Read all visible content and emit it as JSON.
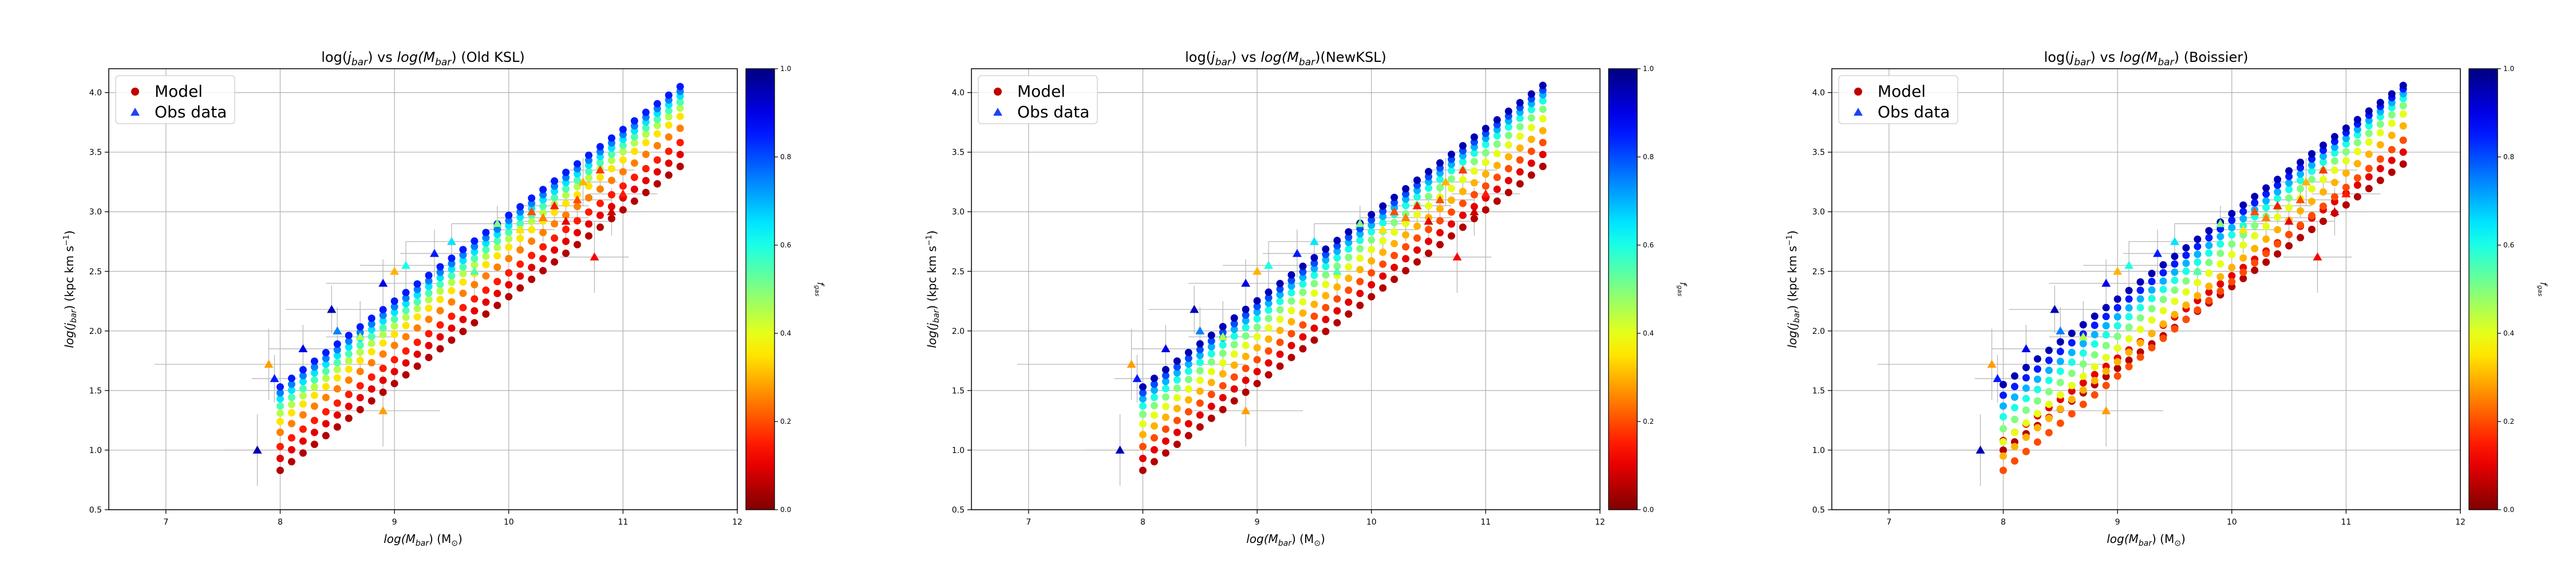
{
  "figure": {
    "shared": {
      "legend": [
        {
          "label": "Model",
          "marker": "circle",
          "color": "#c00000"
        },
        {
          "label": "Obs data",
          "marker": "triangle",
          "color": "#2244ee"
        }
      ],
      "colorbar": {
        "label": "f_gas",
        "range": [
          0.0,
          1.0
        ],
        "ticks": [
          "0.0",
          "0.2",
          "0.4",
          "0.6",
          "0.8",
          "1.0"
        ],
        "colormap": "jet_r"
      }
    },
    "grid_color": "#b0b0b0"
  },
  "chart_data": [
    {
      "type": "scatter",
      "title": "log(j_bar) vs log(M_bar) (Old KSL)",
      "title_parts": {
        "pre": "log(",
        "j": "j",
        "j_sub": "bar",
        "mid": ") vs ",
        "m_log": "log(",
        "m": "M",
        "m_sub": "bar",
        "post": ") (Old KSL)"
      },
      "xlabel": "log(M_bar) (M_sun)",
      "ylabel": "log(j_bar) (kpc km s^-1)",
      "xlim": [
        6.5,
        12.0
      ],
      "ylim": [
        0.5,
        4.2
      ],
      "xticks": [
        7,
        8,
        9,
        10,
        11,
        12
      ],
      "yticks": [
        0.5,
        1.0,
        1.5,
        2.0,
        2.5,
        3.0,
        3.5,
        4.0
      ],
      "grid": true,
      "legend_position": "top-left",
      "model_bands": [
        {
          "fgas": 0.05,
          "x_start": 8.0,
          "x_end": 11.5,
          "y_start": 0.83,
          "y_end": 3.38
        },
        {
          "fgas": 0.1,
          "x_start": 8.0,
          "x_end": 11.5,
          "y_start": 0.93,
          "y_end": 3.48
        },
        {
          "fgas": 0.15,
          "x_start": 8.0,
          "x_end": 11.5,
          "y_start": 1.03,
          "y_end": 3.58
        },
        {
          "fgas": 0.25,
          "x_start": 8.0,
          "x_end": 11.5,
          "y_start": 1.15,
          "y_end": 3.7
        },
        {
          "fgas": 0.35,
          "x_start": 8.0,
          "x_end": 11.5,
          "y_start": 1.24,
          "y_end": 3.8
        },
        {
          "fgas": 0.45,
          "x_start": 8.0,
          "x_end": 11.5,
          "y_start": 1.31,
          "y_end": 3.87
        },
        {
          "fgas": 0.55,
          "x_start": 8.0,
          "x_end": 11.5,
          "y_start": 1.37,
          "y_end": 3.92
        },
        {
          "fgas": 0.65,
          "x_start": 8.0,
          "x_end": 11.5,
          "y_start": 1.43,
          "y_end": 3.97
        },
        {
          "fgas": 0.75,
          "x_start": 8.0,
          "x_end": 11.5,
          "y_start": 1.48,
          "y_end": 4.01
        },
        {
          "fgas": 0.85,
          "x_start": 8.0,
          "x_end": 11.5,
          "y_start": 1.53,
          "y_end": 4.05
        }
      ],
      "obs": [
        {
          "x": 7.8,
          "y": 1.0,
          "fgas": 0.95,
          "xerr": 0.3,
          "yerr": 0.3
        },
        {
          "x": 7.9,
          "y": 1.72,
          "fgas": 0.28,
          "xerr": 1.0,
          "yerr": 0.3
        },
        {
          "x": 7.95,
          "y": 1.6,
          "fgas": 0.85,
          "xerr": 0.2,
          "yerr": 0.2
        },
        {
          "x": 8.2,
          "y": 1.85,
          "fgas": 0.9,
          "xerr": 0.3,
          "yerr": 0.2
        },
        {
          "x": 8.45,
          "y": 2.18,
          "fgas": 0.95,
          "xerr": 0.4,
          "yerr": 0.2
        },
        {
          "x": 8.5,
          "y": 2.0,
          "fgas": 0.75,
          "xerr": 0.4,
          "yerr": 0.2
        },
        {
          "x": 8.7,
          "y": 1.95,
          "fgas": 0.45,
          "xerr": 0.3,
          "yerr": 0.3
        },
        {
          "x": 8.9,
          "y": 1.33,
          "fgas": 0.28,
          "xerr": 0.5,
          "yerr": 0.3
        },
        {
          "x": 8.9,
          "y": 2.4,
          "fgas": 0.9,
          "xerr": 0.5,
          "yerr": 0.2
        },
        {
          "x": 9.0,
          "y": 2.5,
          "fgas": 0.3,
          "xerr": 0.5,
          "yerr": 0.2
        },
        {
          "x": 9.1,
          "y": 2.55,
          "fgas": 0.6,
          "xerr": 0.4,
          "yerr": 0.2
        },
        {
          "x": 9.35,
          "y": 2.65,
          "fgas": 0.85,
          "xerr": 0.3,
          "yerr": 0.2
        },
        {
          "x": 9.5,
          "y": 2.75,
          "fgas": 0.65,
          "xerr": 0.4,
          "yerr": 0.15
        },
        {
          "x": 9.7,
          "y": 2.5,
          "fgas": 0.55,
          "xerr": 0.4,
          "yerr": 0.2
        },
        {
          "x": 9.9,
          "y": 2.9,
          "fgas": 0.5,
          "xerr": 0.4,
          "yerr": 0.15
        },
        {
          "x": 10.1,
          "y": 2.85,
          "fgas": 0.35,
          "xerr": 0.3,
          "yerr": 0.2
        },
        {
          "x": 10.2,
          "y": 3.0,
          "fgas": 0.2,
          "xerr": 0.3,
          "yerr": 0.15
        },
        {
          "x": 10.3,
          "y": 2.95,
          "fgas": 0.25,
          "xerr": 0.4,
          "yerr": 0.2
        },
        {
          "x": 10.4,
          "y": 3.05,
          "fgas": 0.15,
          "xerr": 0.3,
          "yerr": 0.15
        },
        {
          "x": 10.5,
          "y": 2.92,
          "fgas": 0.1,
          "xerr": 0.4,
          "yerr": 0.2
        },
        {
          "x": 10.6,
          "y": 3.1,
          "fgas": 0.2,
          "xerr": 0.3,
          "yerr": 0.15
        },
        {
          "x": 10.65,
          "y": 3.25,
          "fgas": 0.3,
          "xerr": 0.3,
          "yerr": 0.2
        },
        {
          "x": 10.75,
          "y": 2.62,
          "fgas": 0.12,
          "xerr": 0.3,
          "yerr": 0.3
        },
        {
          "x": 10.8,
          "y": 3.35,
          "fgas": 0.18,
          "xerr": 0.3,
          "yerr": 0.15
        },
        {
          "x": 10.9,
          "y": 3.0,
          "fgas": 0.08,
          "xerr": 0.3,
          "yerr": 0.2
        },
        {
          "x": 11.0,
          "y": 3.15,
          "fgas": 0.15,
          "xerr": 0.3,
          "yerr": 0.15
        }
      ]
    },
    {
      "type": "scatter",
      "title": "log(j_bar) vs log(M_bar)(NewKSL)",
      "title_parts": {
        "pre": "log(",
        "j": "j",
        "j_sub": "bar",
        "mid": ") vs ",
        "m_log": "log(",
        "m": "M",
        "m_sub": "bar",
        "post": ")(NewKSL)"
      },
      "xlabel": "log(M_bar) (M_sun)",
      "ylabel": "log(j_bar) (kpc km s^-1)",
      "xlim": [
        6.5,
        12.0
      ],
      "ylim": [
        0.5,
        4.2
      ],
      "xticks": [
        7,
        8,
        9,
        10,
        11,
        12
      ],
      "yticks": [
        0.5,
        1.0,
        1.5,
        2.0,
        2.5,
        3.0,
        3.5,
        4.0
      ],
      "grid": true,
      "legend_position": "top-left",
      "model_bands": [
        {
          "fgas": 0.05,
          "x_start": 8.0,
          "x_end": 11.5,
          "y_start": 0.83,
          "y_end": 3.38
        },
        {
          "fgas": 0.1,
          "x_start": 8.0,
          "x_end": 11.5,
          "y_start": 0.93,
          "y_end": 3.48
        },
        {
          "fgas": 0.2,
          "x_start": 8.0,
          "x_end": 11.5,
          "y_start": 1.03,
          "y_end": 3.58
        },
        {
          "fgas": 0.3,
          "x_start": 8.0,
          "x_end": 11.5,
          "y_start": 1.13,
          "y_end": 3.68
        },
        {
          "fgas": 0.4,
          "x_start": 8.0,
          "x_end": 11.5,
          "y_start": 1.22,
          "y_end": 3.78
        },
        {
          "fgas": 0.5,
          "x_start": 8.0,
          "x_end": 11.5,
          "y_start": 1.3,
          "y_end": 3.86
        },
        {
          "fgas": 0.6,
          "x_start": 8.0,
          "x_end": 11.5,
          "y_start": 1.37,
          "y_end": 3.93
        },
        {
          "fgas": 0.7,
          "x_start": 8.0,
          "x_end": 11.5,
          "y_start": 1.43,
          "y_end": 3.98
        },
        {
          "fgas": 0.8,
          "x_start": 8.0,
          "x_end": 11.5,
          "y_start": 1.48,
          "y_end": 4.02
        },
        {
          "fgas": 0.95,
          "x_start": 8.0,
          "x_end": 11.5,
          "y_start": 1.53,
          "y_end": 4.06
        }
      ],
      "obs": [
        {
          "x": 7.8,
          "y": 1.0,
          "fgas": 0.95,
          "xerr": 0.3,
          "yerr": 0.3
        },
        {
          "x": 7.9,
          "y": 1.72,
          "fgas": 0.28,
          "xerr": 1.0,
          "yerr": 0.3
        },
        {
          "x": 7.95,
          "y": 1.6,
          "fgas": 0.85,
          "xerr": 0.2,
          "yerr": 0.2
        },
        {
          "x": 8.2,
          "y": 1.85,
          "fgas": 0.9,
          "xerr": 0.3,
          "yerr": 0.2
        },
        {
          "x": 8.45,
          "y": 2.18,
          "fgas": 0.95,
          "xerr": 0.4,
          "yerr": 0.2
        },
        {
          "x": 8.5,
          "y": 2.0,
          "fgas": 0.75,
          "xerr": 0.4,
          "yerr": 0.2
        },
        {
          "x": 8.7,
          "y": 1.95,
          "fgas": 0.45,
          "xerr": 0.3,
          "yerr": 0.3
        },
        {
          "x": 8.9,
          "y": 1.33,
          "fgas": 0.28,
          "xerr": 0.5,
          "yerr": 0.3
        },
        {
          "x": 8.9,
          "y": 2.4,
          "fgas": 0.9,
          "xerr": 0.5,
          "yerr": 0.2
        },
        {
          "x": 9.0,
          "y": 2.5,
          "fgas": 0.3,
          "xerr": 0.5,
          "yerr": 0.2
        },
        {
          "x": 9.1,
          "y": 2.55,
          "fgas": 0.6,
          "xerr": 0.4,
          "yerr": 0.2
        },
        {
          "x": 9.35,
          "y": 2.65,
          "fgas": 0.85,
          "xerr": 0.3,
          "yerr": 0.2
        },
        {
          "x": 9.5,
          "y": 2.75,
          "fgas": 0.65,
          "xerr": 0.4,
          "yerr": 0.15
        },
        {
          "x": 9.7,
          "y": 2.5,
          "fgas": 0.55,
          "xerr": 0.4,
          "yerr": 0.2
        },
        {
          "x": 9.9,
          "y": 2.9,
          "fgas": 0.5,
          "xerr": 0.4,
          "yerr": 0.15
        },
        {
          "x": 10.1,
          "y": 2.85,
          "fgas": 0.35,
          "xerr": 0.3,
          "yerr": 0.2
        },
        {
          "x": 10.2,
          "y": 3.0,
          "fgas": 0.2,
          "xerr": 0.3,
          "yerr": 0.15
        },
        {
          "x": 10.3,
          "y": 2.95,
          "fgas": 0.25,
          "xerr": 0.4,
          "yerr": 0.2
        },
        {
          "x": 10.4,
          "y": 3.05,
          "fgas": 0.15,
          "xerr": 0.3,
          "yerr": 0.15
        },
        {
          "x": 10.5,
          "y": 2.92,
          "fgas": 0.1,
          "xerr": 0.4,
          "yerr": 0.2
        },
        {
          "x": 10.6,
          "y": 3.1,
          "fgas": 0.2,
          "xerr": 0.3,
          "yerr": 0.15
        },
        {
          "x": 10.65,
          "y": 3.25,
          "fgas": 0.3,
          "xerr": 0.3,
          "yerr": 0.2
        },
        {
          "x": 10.75,
          "y": 2.62,
          "fgas": 0.12,
          "xerr": 0.3,
          "yerr": 0.3
        },
        {
          "x": 10.8,
          "y": 3.35,
          "fgas": 0.18,
          "xerr": 0.3,
          "yerr": 0.15
        },
        {
          "x": 10.9,
          "y": 3.0,
          "fgas": 0.08,
          "xerr": 0.3,
          "yerr": 0.2
        },
        {
          "x": 11.0,
          "y": 3.15,
          "fgas": 0.15,
          "xerr": 0.3,
          "yerr": 0.15
        }
      ]
    },
    {
      "type": "scatter",
      "title": "log(j_bar) vs log(M_bar) (Boissier)",
      "title_parts": {
        "pre": "log(",
        "j": "j",
        "j_sub": "bar",
        "mid": ") vs ",
        "m_log": "log(",
        "m": "M",
        "m_sub": "bar",
        "post": ") (Boissier)"
      },
      "xlabel": "log(M_bar) (M_sun)",
      "ylabel": "log(j_bar) (kpc km s^-1)",
      "xlim": [
        6.5,
        12.0
      ],
      "ylim": [
        0.5,
        4.2
      ],
      "xticks": [
        7,
        8,
        9,
        10,
        11,
        12
      ],
      "yticks": [
        0.5,
        1.0,
        1.5,
        2.0,
        2.5,
        3.0,
        3.5,
        4.0
      ],
      "grid": true,
      "legend_position": "top-left",
      "model_bands": [
        {
          "fgas": 0.05,
          "x_start": 8.0,
          "x_end": 11.5,
          "y_start": 1.0,
          "y_end": 3.4
        },
        {
          "fgas": 0.1,
          "x_start": 8.0,
          "x_end": 11.5,
          "y_start": 1.08,
          "y_end": 3.5
        },
        {
          "fgas": 0.2,
          "x_start": 8.0,
          "x_end": 11.5,
          "y_start": 0.83,
          "y_end": 3.6
        },
        {
          "fgas": 0.3,
          "x_start": 8.0,
          "x_end": 11.5,
          "y_start": 0.95,
          "y_end": 3.72
        },
        {
          "fgas": 0.4,
          "x_start": 8.0,
          "x_end": 11.5,
          "y_start": 1.07,
          "y_end": 3.82
        },
        {
          "fgas": 0.5,
          "x_start": 8.0,
          "x_end": 11.5,
          "y_start": 1.18,
          "y_end": 3.89
        },
        {
          "fgas": 0.6,
          "x_start": 8.0,
          "x_end": 11.5,
          "y_start": 1.28,
          "y_end": 3.95
        },
        {
          "fgas": 0.7,
          "x_start": 8.0,
          "x_end": 11.5,
          "y_start": 1.37,
          "y_end": 3.99
        },
        {
          "fgas": 0.85,
          "x_start": 8.0,
          "x_end": 11.5,
          "y_start": 1.46,
          "y_end": 4.03
        },
        {
          "fgas": 0.95,
          "x_start": 8.0,
          "x_end": 11.5,
          "y_start": 1.55,
          "y_end": 4.06
        }
      ],
      "obs": [
        {
          "x": 7.8,
          "y": 1.0,
          "fgas": 0.95,
          "xerr": 0.3,
          "yerr": 0.3
        },
        {
          "x": 7.9,
          "y": 1.72,
          "fgas": 0.28,
          "xerr": 1.0,
          "yerr": 0.3
        },
        {
          "x": 7.95,
          "y": 1.6,
          "fgas": 0.85,
          "xerr": 0.2,
          "yerr": 0.2
        },
        {
          "x": 8.2,
          "y": 1.85,
          "fgas": 0.9,
          "xerr": 0.3,
          "yerr": 0.2
        },
        {
          "x": 8.45,
          "y": 2.18,
          "fgas": 0.95,
          "xerr": 0.4,
          "yerr": 0.2
        },
        {
          "x": 8.5,
          "y": 2.0,
          "fgas": 0.75,
          "xerr": 0.4,
          "yerr": 0.2
        },
        {
          "x": 8.7,
          "y": 1.95,
          "fgas": 0.45,
          "xerr": 0.3,
          "yerr": 0.3
        },
        {
          "x": 8.9,
          "y": 1.33,
          "fgas": 0.28,
          "xerr": 0.5,
          "yerr": 0.3
        },
        {
          "x": 8.9,
          "y": 2.4,
          "fgas": 0.9,
          "xerr": 0.5,
          "yerr": 0.2
        },
        {
          "x": 9.0,
          "y": 2.5,
          "fgas": 0.3,
          "xerr": 0.5,
          "yerr": 0.2
        },
        {
          "x": 9.1,
          "y": 2.55,
          "fgas": 0.6,
          "xerr": 0.4,
          "yerr": 0.2
        },
        {
          "x": 9.35,
          "y": 2.65,
          "fgas": 0.85,
          "xerr": 0.3,
          "yerr": 0.2
        },
        {
          "x": 9.5,
          "y": 2.75,
          "fgas": 0.65,
          "xerr": 0.4,
          "yerr": 0.15
        },
        {
          "x": 9.7,
          "y": 2.5,
          "fgas": 0.55,
          "xerr": 0.4,
          "yerr": 0.2
        },
        {
          "x": 9.9,
          "y": 2.9,
          "fgas": 0.5,
          "xerr": 0.4,
          "yerr": 0.15
        },
        {
          "x": 10.1,
          "y": 2.85,
          "fgas": 0.35,
          "xerr": 0.3,
          "yerr": 0.2
        },
        {
          "x": 10.2,
          "y": 3.0,
          "fgas": 0.2,
          "xerr": 0.3,
          "yerr": 0.15
        },
        {
          "x": 10.3,
          "y": 2.95,
          "fgas": 0.25,
          "xerr": 0.4,
          "yerr": 0.2
        },
        {
          "x": 10.4,
          "y": 3.05,
          "fgas": 0.15,
          "xerr": 0.3,
          "yerr": 0.15
        },
        {
          "x": 10.5,
          "y": 2.92,
          "fgas": 0.1,
          "xerr": 0.4,
          "yerr": 0.2
        },
        {
          "x": 10.6,
          "y": 3.1,
          "fgas": 0.2,
          "xerr": 0.3,
          "yerr": 0.15
        },
        {
          "x": 10.65,
          "y": 3.25,
          "fgas": 0.3,
          "xerr": 0.3,
          "yerr": 0.2
        },
        {
          "x": 10.75,
          "y": 2.62,
          "fgas": 0.12,
          "xerr": 0.3,
          "yerr": 0.3
        },
        {
          "x": 10.8,
          "y": 3.35,
          "fgas": 0.18,
          "xerr": 0.3,
          "yerr": 0.15
        },
        {
          "x": 10.9,
          "y": 3.0,
          "fgas": 0.08,
          "xerr": 0.3,
          "yerr": 0.2
        },
        {
          "x": 11.0,
          "y": 3.15,
          "fgas": 0.15,
          "xerr": 0.3,
          "yerr": 0.15
        }
      ]
    }
  ]
}
